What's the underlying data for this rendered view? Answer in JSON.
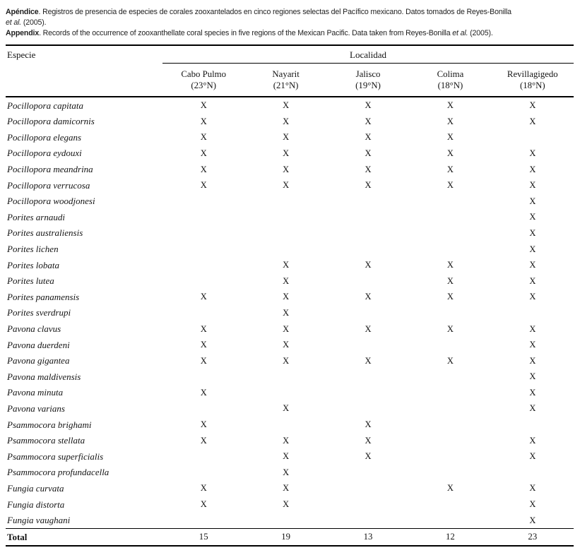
{
  "caption": {
    "spanish": {
      "label": "Apéndice",
      "line1": ". Registros de presencia de especies de corales zooxantelados en cinco regiones selectas del Pacífico mexicano. Datos tomados de Reyes-Bonilla",
      "etal": "et al.",
      "line2_tail": " (2005)."
    },
    "english": {
      "label": "Appendix",
      "body": ". Records of the occurrence of zooxanthellate coral species in five regions of the Mexican Pacific. Data taken from Reyes-Bonilla ",
      "etal": "et al.",
      "tail": " (2005)."
    }
  },
  "table": {
    "species_header": "Especie",
    "group_header": "Localidad",
    "columns": [
      {
        "name": "Cabo Pulmo",
        "lat": "(23°N)"
      },
      {
        "name": "Nayarit",
        "lat": "(21°N)"
      },
      {
        "name": "Jalisco",
        "lat": "(19°N)"
      },
      {
        "name": "Colima",
        "lat": "(18°N)"
      },
      {
        "name": "Revillagigedo",
        "lat": "(18°N)"
      }
    ],
    "mark": "X",
    "rows": [
      {
        "species": "Pocillopora capitata",
        "presence": [
          1,
          1,
          1,
          1,
          1
        ]
      },
      {
        "species": "Pocillopora damicornis",
        "presence": [
          1,
          1,
          1,
          1,
          1
        ]
      },
      {
        "species": "Pocillopora elegans",
        "presence": [
          1,
          1,
          1,
          1,
          0
        ]
      },
      {
        "species": "Pocillopora eydouxi",
        "presence": [
          1,
          1,
          1,
          1,
          1
        ]
      },
      {
        "species": "Pocillopora meandrina",
        "presence": [
          1,
          1,
          1,
          1,
          1
        ]
      },
      {
        "species": "Pocillopora verrucosa",
        "presence": [
          1,
          1,
          1,
          1,
          1
        ]
      },
      {
        "species": "Pocillopora woodjonesi",
        "presence": [
          0,
          0,
          0,
          0,
          1
        ]
      },
      {
        "species": "Porites arnaudi",
        "presence": [
          0,
          0,
          0,
          0,
          1
        ]
      },
      {
        "species": "Porites australiensis",
        "presence": [
          0,
          0,
          0,
          0,
          1
        ]
      },
      {
        "species": "Porites lichen",
        "presence": [
          0,
          0,
          0,
          0,
          1
        ]
      },
      {
        "species": "Porites lobata",
        "presence": [
          0,
          1,
          1,
          1,
          1
        ]
      },
      {
        "species": "Porites lutea",
        "presence": [
          0,
          1,
          0,
          1,
          1
        ]
      },
      {
        "species": "Porites panamensis",
        "presence": [
          1,
          1,
          1,
          1,
          1
        ]
      },
      {
        "species": "Porites sverdrupi",
        "presence": [
          0,
          1,
          0,
          0,
          0
        ]
      },
      {
        "species": "Pavona clavus",
        "presence": [
          1,
          1,
          1,
          1,
          1
        ]
      },
      {
        "species": "Pavona duerdeni",
        "presence": [
          1,
          1,
          0,
          0,
          1
        ]
      },
      {
        "species": "Pavona gigantea",
        "presence": [
          1,
          1,
          1,
          1,
          1
        ]
      },
      {
        "species": "Pavona maldivensis",
        "presence": [
          0,
          0,
          0,
          0,
          1
        ]
      },
      {
        "species": "Pavona minuta",
        "presence": [
          1,
          0,
          0,
          0,
          1
        ]
      },
      {
        "species": "Pavona varians",
        "presence": [
          0,
          1,
          0,
          0,
          1
        ]
      },
      {
        "species": "Psammocora brighami",
        "presence": [
          1,
          0,
          1,
          0,
          0
        ]
      },
      {
        "species": "Psammocora stellata",
        "presence": [
          1,
          1,
          1,
          0,
          1
        ]
      },
      {
        "species": "Psammocora superficialis",
        "presence": [
          0,
          1,
          1,
          0,
          1
        ]
      },
      {
        "species": "Psammocora profundacella",
        "presence": [
          0,
          1,
          0,
          0,
          0
        ]
      },
      {
        "species": "Fungia curvata",
        "presence": [
          1,
          1,
          0,
          1,
          1
        ]
      },
      {
        "species": "Fungia distorta",
        "presence": [
          1,
          1,
          0,
          0,
          1
        ]
      },
      {
        "species": "Fungia vaughani",
        "presence": [
          0,
          0,
          0,
          0,
          1
        ]
      }
    ],
    "total_label": "Total",
    "totals": [
      15,
      19,
      13,
      12,
      23
    ]
  }
}
